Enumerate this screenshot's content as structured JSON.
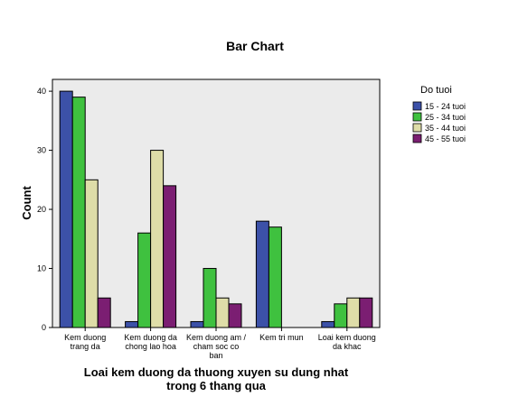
{
  "chart_data": {
    "type": "bar",
    "title": "Bar Chart",
    "ylabel": "Count",
    "xlabel": [
      "Loai kem duong da thuong xuyen su dung nhat",
      "trong 6 thang qua"
    ],
    "ylim": [
      0,
      42
    ],
    "yticks": [
      0,
      10,
      20,
      30,
      40
    ],
    "grid": false,
    "legend_title": "Do tuoi",
    "legend_position": "right",
    "categories": [
      [
        "Kem duong",
        "trang da"
      ],
      [
        "Kem duong da",
        "chong lao hoa"
      ],
      [
        "Kem duong am /",
        "cham soc co",
        "ban"
      ],
      [
        "Kem tri mun"
      ],
      [
        "Loai kem duong",
        "da khac"
      ]
    ],
    "series": [
      {
        "name": "15 - 24 tuoi",
        "color": "#3c51a8",
        "values": [
          40,
          1,
          1,
          18,
          1
        ]
      },
      {
        "name": "25 - 34 tuoi",
        "color": "#3fc13f",
        "values": [
          39,
          16,
          10,
          17,
          4
        ]
      },
      {
        "name": "35 - 44 tuoi",
        "color": "#dedda8",
        "values": [
          25,
          30,
          5,
          0,
          5
        ]
      },
      {
        "name": "45 - 55 tuoi",
        "color": "#7b1e72",
        "values": [
          5,
          24,
          4,
          0,
          5
        ]
      }
    ],
    "plot_background": "#ebebeb"
  }
}
